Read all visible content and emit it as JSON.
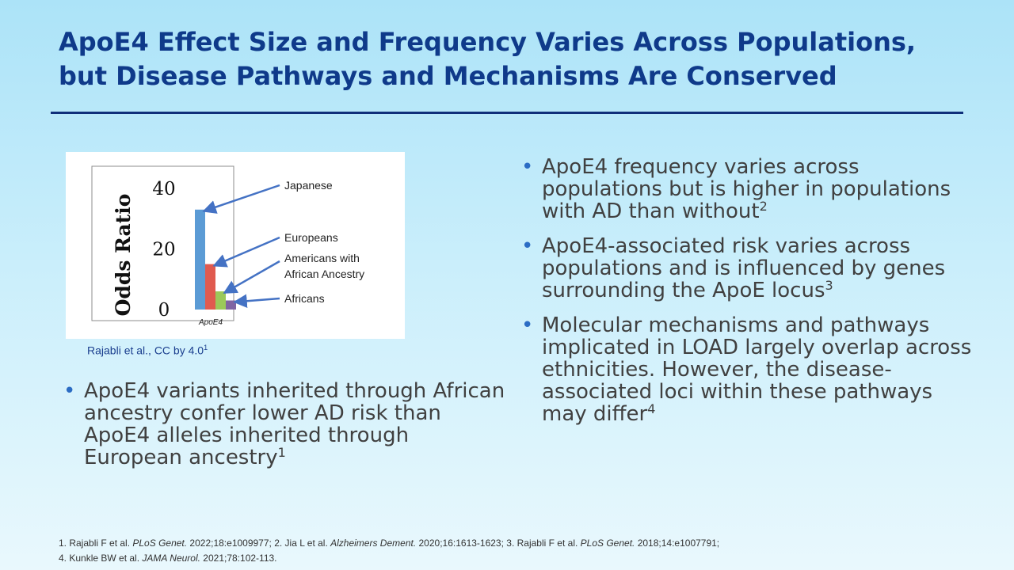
{
  "slide": {
    "title": "ApoE4 Effect Size and Frequency Varies Across Populations, but Disease Pathways and Mechanisms Are Conserved",
    "caption": {
      "text": "Rajabli et al., CC by 4.0",
      "sup": "1"
    },
    "left_bullets": [
      {
        "text": "ApoE4 variants inherited through African ancestry confer lower AD risk than ApoE4 alleles inherited through European ancestry",
        "sup": "1"
      }
    ],
    "right_bullets": [
      {
        "text": "ApoE4 frequency varies across populations but is higher in populations with AD than without",
        "sup": "2"
      },
      {
        "text": "ApoE4-associated risk varies across populations and is influenced by genes surrounding the ApoE locus",
        "sup": "3"
      },
      {
        "text": "Molecular mechanisms and pathways implicated in LOAD largely overlap across ethnicities. However, the disease-associated loci within these pathways may differ",
        "sup": "4"
      }
    ],
    "references": {
      "line1": [
        {
          "text": "1. Rajabli F et al. ",
          "italic": false
        },
        {
          "text": "PLoS Genet.",
          "italic": true
        },
        {
          "text": " 2022;18:e1009977;  2. Jia L et al. ",
          "italic": false
        },
        {
          "text": "Alzheimers Dement.",
          "italic": true
        },
        {
          "text": " 2020;16:1613-1623;  3. Rajabli F et al. ",
          "italic": false
        },
        {
          "text": "PLoS Genet.",
          "italic": true
        },
        {
          "text": " 2018;14:e1007791;",
          "italic": false
        }
      ],
      "line2": [
        {
          "text": "4. Kunkle BW et al. ",
          "italic": false
        },
        {
          "text": "JAMA Neurol.",
          "italic": true
        },
        {
          "text": " 2021;78:102-113.",
          "italic": false
        }
      ]
    },
    "bullet_color": "#2b6cc4",
    "title_color": "#0f3a8a"
  },
  "chart_data": {
    "type": "bar",
    "ylabel": "Odds Ratio",
    "xlabel": "ApoE4",
    "ylim": [
      0,
      40
    ],
    "yticks": [
      0,
      20,
      40
    ],
    "series": [
      {
        "name": "Japanese",
        "value": 33,
        "color": "#5b9bd5"
      },
      {
        "name": "Europeans",
        "value": 15,
        "color": "#e05a4f"
      },
      {
        "name": "Americans with African Ancestry",
        "label_lines": [
          "Americans with",
          "African Ancestry"
        ],
        "value": 6,
        "color": "#9bc95a"
      },
      {
        "name": "Africans",
        "value": 3,
        "color": "#8064a2"
      }
    ],
    "arrow_color": "#4472c4"
  }
}
